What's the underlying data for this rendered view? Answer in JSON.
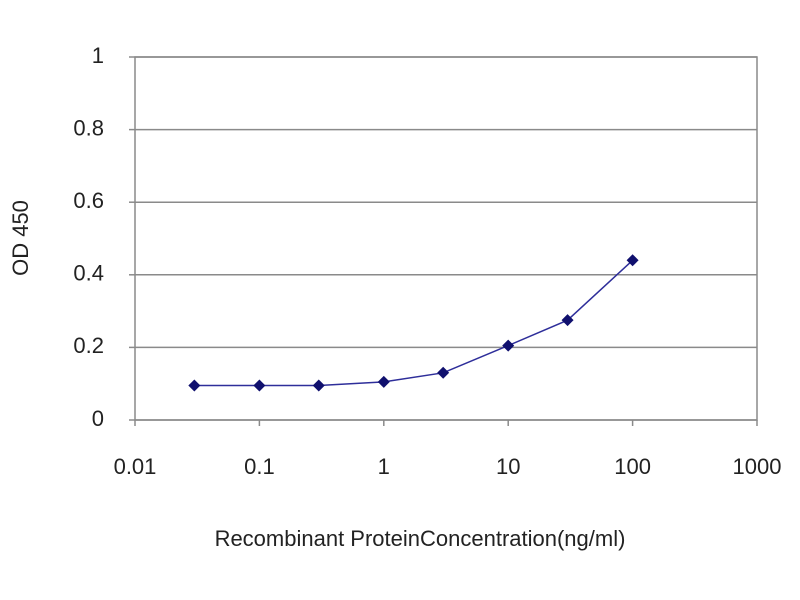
{
  "chart_data": {
    "type": "line",
    "x_label": "Recombinant ProteinConcentration(ng/ml)",
    "y_label": "OD 450",
    "x": [
      0.03,
      0.1,
      0.3,
      1,
      3,
      10,
      30,
      100
    ],
    "values": [
      0.095,
      0.095,
      0.095,
      0.105,
      0.13,
      0.205,
      0.275,
      0.44
    ],
    "color": "#2e2e9a",
    "marker_color": "#10106e",
    "xscale": "log",
    "xlim": [
      0.01,
      1000
    ],
    "xticks": [
      0.01,
      0.1,
      1,
      10,
      100,
      1000
    ],
    "ylim": [
      0,
      1
    ],
    "yticks": [
      0,
      0.2,
      0.4,
      0.6,
      0.8,
      1
    ],
    "grid": true
  }
}
